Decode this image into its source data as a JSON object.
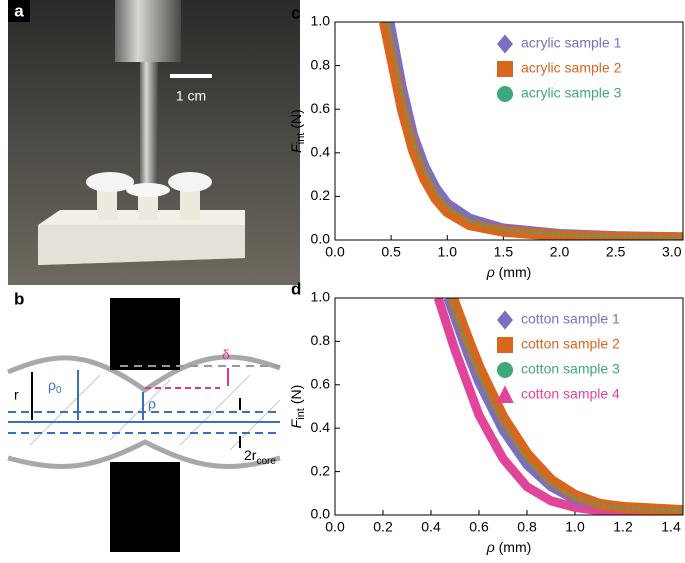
{
  "panels": {
    "a": {
      "label": "a",
      "scale_bar": "1 cm"
    },
    "b": {
      "label": "b",
      "r": "r",
      "rho0": {
        "main": "ρ",
        "sub": "0"
      },
      "rho": "ρ",
      "delta": "δ",
      "core": {
        "main": "2r",
        "sub": "core"
      }
    }
  },
  "chart_data": [
    {
      "type": "line",
      "panel_label": "c",
      "xlabel": {
        "main": "ρ",
        "unit": "(mm)"
      },
      "ylabel": {
        "main": "F",
        "sub": "int",
        "unit": "(N)"
      },
      "xlim": [
        0,
        3.1
      ],
      "ylim": [
        0,
        1
      ],
      "xticks": [
        {
          "value": 0,
          "label": "0.0"
        },
        0.5,
        {
          "value": 1,
          "label": "1.0"
        },
        1.5,
        {
          "value": 2,
          "label": "2.0"
        },
        2.5,
        {
          "value": 3,
          "label": "3.0"
        }
      ],
      "yticks": [
        {
          "value": 0,
          "label": "0.0"
        },
        0.2,
        0.4,
        0.6,
        0.8,
        {
          "value": 1,
          "label": "1.0"
        }
      ],
      "legend": "upper right",
      "series": [
        {
          "name": "acrylic sample 1",
          "color": "#7b6fc2",
          "marker": "diamond",
          "x": [
            0.49,
            0.6,
            0.7,
            0.8,
            0.9,
            1.0,
            1.2,
            1.5,
            2.0,
            2.5,
            3.1
          ],
          "values": [
            1.0,
            0.7,
            0.48,
            0.34,
            0.24,
            0.17,
            0.1,
            0.055,
            0.03,
            0.02,
            0.015
          ]
        },
        {
          "name": "acrylic sample 2",
          "color": "#d8661c",
          "marker": "square",
          "x": [
            0.44,
            0.6,
            0.7,
            0.8,
            0.9,
            1.0,
            1.2,
            1.5,
            2.0,
            2.5,
            3.1
          ],
          "values": [
            1.0,
            0.6,
            0.41,
            0.28,
            0.19,
            0.13,
            0.07,
            0.04,
            0.02,
            0.012,
            0.01
          ]
        },
        {
          "name": "acrylic sample 3",
          "color": "#3ea77c",
          "marker": "circle",
          "x": [
            0.47,
            0.6,
            0.7,
            0.8,
            0.9,
            1.0,
            1.2,
            1.5,
            2.0,
            2.5,
            3.1
          ],
          "values": [
            1.0,
            0.66,
            0.45,
            0.31,
            0.22,
            0.15,
            0.085,
            0.048,
            0.025,
            0.016,
            0.012
          ]
        }
      ]
    },
    {
      "type": "line",
      "panel_label": "d",
      "xlabel": {
        "main": "ρ",
        "unit": "(mm)"
      },
      "ylabel": {
        "main": "F",
        "sub": "int",
        "unit": "(N)"
      },
      "xlim": [
        0,
        1.45
      ],
      "ylim": [
        0,
        1
      ],
      "xticks": [
        {
          "value": 0,
          "label": "0.0"
        },
        0.2,
        0.4,
        0.6,
        0.8,
        {
          "value": 1,
          "label": "1.0"
        },
        1.2,
        1.4
      ],
      "yticks": [
        {
          "value": 0,
          "label": "0.0"
        },
        0.2,
        0.4,
        0.6,
        0.8,
        {
          "value": 1,
          "label": "1.0"
        }
      ],
      "legend": "upper right",
      "series": [
        {
          "name": "cotton sample 1",
          "color": "#7b6fc2",
          "marker": "diamond",
          "x": [
            0.47,
            0.55,
            0.6,
            0.7,
            0.8,
            0.9,
            1.0,
            1.1,
            1.2,
            1.45
          ],
          "values": [
            1.0,
            0.75,
            0.61,
            0.39,
            0.23,
            0.13,
            0.07,
            0.045,
            0.03,
            0.02
          ]
        },
        {
          "name": "cotton sample 2",
          "color": "#d8661c",
          "marker": "square",
          "x": [
            0.49,
            0.55,
            0.6,
            0.7,
            0.8,
            0.9,
            1.0,
            1.1,
            1.2,
            1.45
          ],
          "values": [
            1.0,
            0.82,
            0.68,
            0.45,
            0.28,
            0.16,
            0.09,
            0.05,
            0.035,
            0.02
          ]
        },
        {
          "name": "cotton sample 3",
          "color": "#3ea77c",
          "marker": "circle",
          "x": [
            0.48,
            0.55,
            0.6,
            0.7,
            0.8,
            0.9,
            1.0,
            1.1,
            1.2,
            1.45
          ],
          "values": [
            1.0,
            0.78,
            0.64,
            0.42,
            0.25,
            0.14,
            0.08,
            0.048,
            0.032,
            0.02
          ]
        },
        {
          "name": "cotton sample 4",
          "color": "#e2449a",
          "marker": "triangle",
          "x": [
            0.43,
            0.5,
            0.6,
            0.7,
            0.8,
            0.9,
            1.0,
            1.1,
            1.2,
            1.45
          ],
          "values": [
            1.0,
            0.76,
            0.46,
            0.26,
            0.13,
            0.065,
            0.035,
            0.02,
            0.015,
            0.01
          ]
        }
      ]
    }
  ]
}
